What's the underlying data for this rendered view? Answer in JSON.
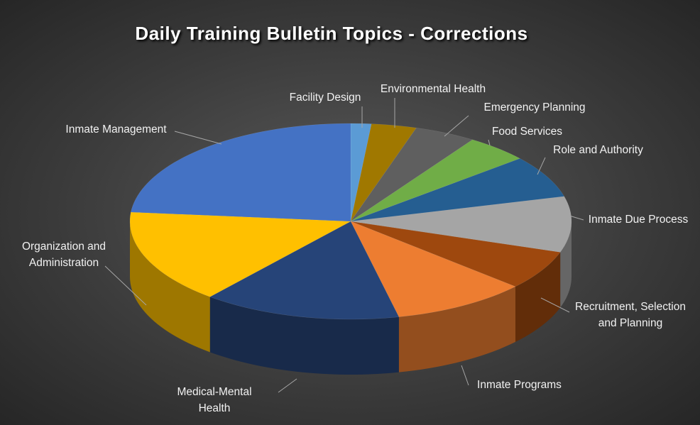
{
  "chart_data": {
    "type": "pie3d",
    "title": "Daily Training Bulletin Topics - Corrections",
    "categories": [
      "Facility Design",
      "Environmental Health",
      "Emergency Planning",
      "Food Services",
      "Role and Authority",
      "Inmate Due Process",
      "Recruitment, Selection and Planning",
      "Inmate Programs",
      "Medical-Mental Health",
      "Organization and Administration",
      "Inmate Management"
    ],
    "values": [
      1.5,
      3.3,
      4.5,
      4.6,
      7.0,
      9.2,
      6.5,
      9.9,
      14.5,
      15.5,
      23.5
    ],
    "colors": [
      "#5b9bd5",
      "#a07800",
      "#5f5f5f",
      "#70ad47",
      "#255e91",
      "#a5a5a5",
      "#9e480e",
      "#ed7d31",
      "#264478",
      "#ffc000",
      "#4472c4"
    ]
  }
}
